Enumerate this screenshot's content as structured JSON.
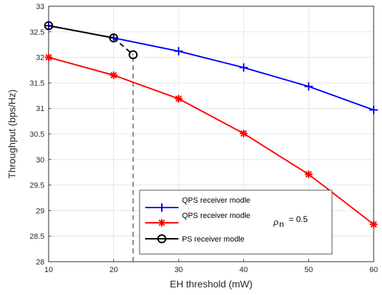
{
  "chart_data": {
    "type": "line",
    "xlabel": "EH threshold (mW)",
    "ylabel": "Throughput (bps/Hz)",
    "xlim": [
      10,
      60
    ],
    "ylim": [
      28,
      33
    ],
    "x_ticks": [
      "10",
      "20",
      "30",
      "40",
      "50",
      "60"
    ],
    "y_ticks": [
      "28",
      "28.5",
      "29",
      "29.5",
      "30",
      "30.5",
      "31",
      "31.5",
      "32",
      "32.5",
      "33"
    ],
    "grid": true,
    "legend_position": "bottom-center",
    "series": [
      {
        "name": "QPS receiver modle",
        "color": "#0000ff",
        "marker": "plus",
        "line": "solid",
        "points": [
          [
            10,
            32.62
          ],
          [
            20,
            32.38
          ],
          [
            30,
            32.12
          ],
          [
            40,
            31.8
          ],
          [
            50,
            31.43
          ],
          [
            60,
            30.97
          ]
        ]
      },
      {
        "name": "QPS receiver modle",
        "color": "#ff0000",
        "marker": "asterisk",
        "line": "solid",
        "points": [
          [
            10,
            32.0
          ],
          [
            20,
            31.65
          ],
          [
            30,
            31.19
          ],
          [
            40,
            30.51
          ],
          [
            50,
            29.71
          ],
          [
            60,
            28.73
          ]
        ]
      },
      {
        "name": "PS receiver modle",
        "color": "#000000",
        "marker": "circle",
        "line": "solid",
        "points": [
          [
            10,
            32.62
          ],
          [
            20,
            32.38
          ]
        ]
      }
    ],
    "extension": {
      "points": [
        [
          20,
          32.38
        ],
        [
          23,
          32.05
        ]
      ],
      "line": "dashed",
      "color": "#000000",
      "marker": "circle"
    },
    "guide_line": {
      "x": 23,
      "y_from": 28,
      "y_to": 32.05,
      "line": "dashed"
    },
    "annotation": {
      "symbol": "ρ",
      "subscript": "n",
      "text": "= 0.5"
    }
  }
}
